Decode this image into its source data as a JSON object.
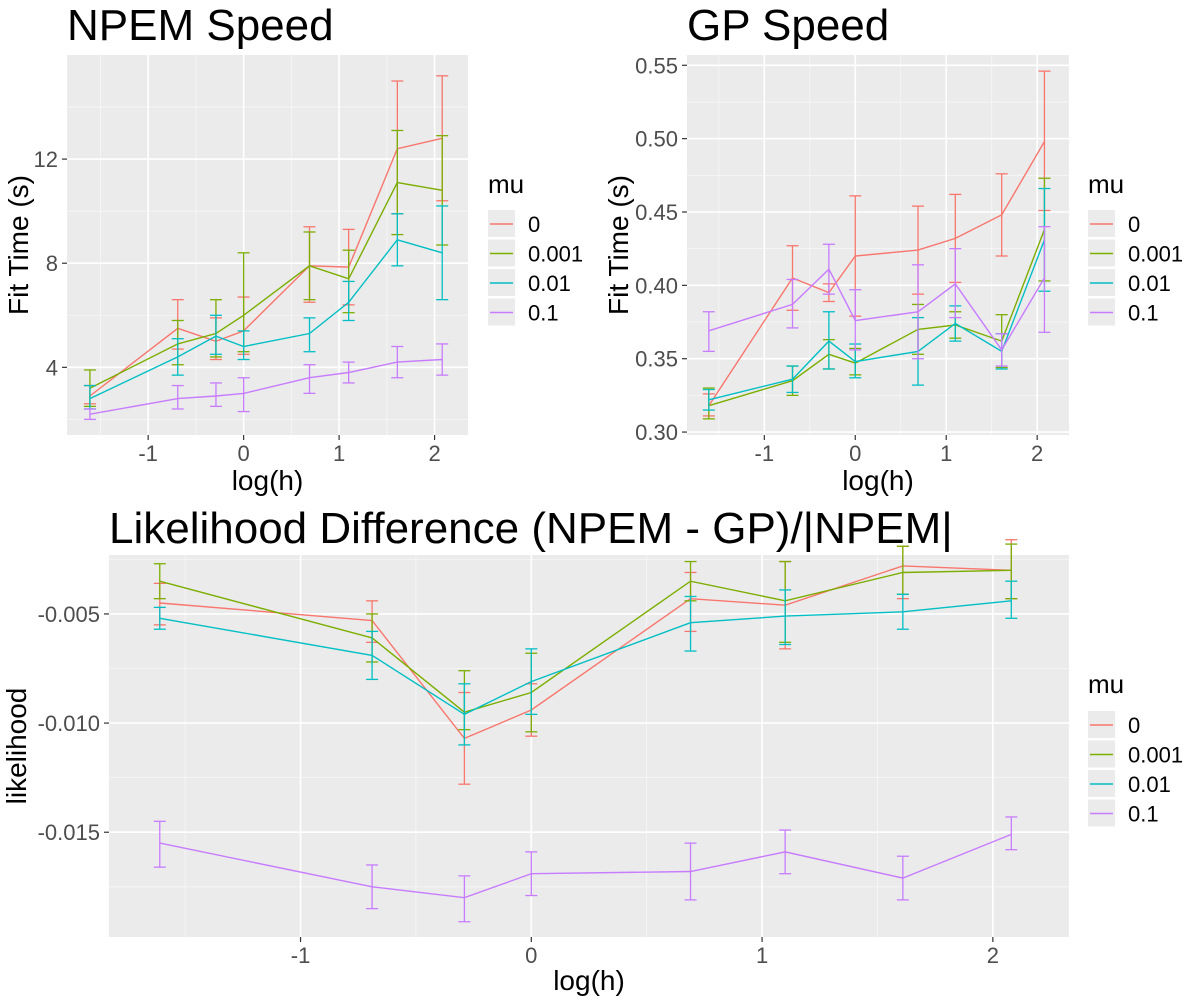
{
  "chart_data": [
    {
      "type": "line",
      "title": "NPEM Speed",
      "xlabel": "log(h)",
      "ylabel": "Fit Time (s)",
      "x": [
        -1.61,
        -0.69,
        -0.29,
        0.0,
        0.69,
        1.1,
        1.61,
        2.08
      ],
      "xlim": [
        -1.85,
        2.35
      ],
      "ylim": [
        1.4,
        16.0
      ],
      "xticks": [
        -1,
        0,
        1,
        2
      ],
      "yticks": [
        4,
        8,
        12
      ],
      "grid": true,
      "legend": {
        "title": "mu",
        "placement": "right"
      },
      "series": [
        {
          "name": "0",
          "color": "#F8766D",
          "values": [
            2.9,
            5.5,
            5.0,
            5.4,
            7.9,
            7.85,
            12.4,
            12.8
          ],
          "err_low": [
            2.6,
            4.7,
            4.3,
            4.5,
            6.5,
            6.4,
            9.9,
            10.4
          ],
          "err_high": [
            3.3,
            6.6,
            5.9,
            6.7,
            9.4,
            9.3,
            15.0,
            15.2
          ]
        },
        {
          "name": "0.001",
          "color": "#7CAE00",
          "values": [
            3.2,
            4.9,
            5.3,
            6.0,
            7.9,
            7.4,
            11.1,
            10.8
          ],
          "err_low": [
            2.5,
            4.1,
            4.4,
            4.6,
            6.6,
            6.1,
            9.1,
            8.7
          ],
          "err_high": [
            3.9,
            5.8,
            6.6,
            8.4,
            9.2,
            8.5,
            13.1,
            12.9
          ]
        },
        {
          "name": "0.01",
          "color": "#00BFC4",
          "values": [
            2.8,
            4.4,
            5.2,
            4.8,
            5.3,
            6.5,
            8.9,
            8.4
          ],
          "err_low": [
            2.4,
            3.7,
            4.5,
            4.3,
            4.6,
            5.8,
            7.9,
            6.6
          ],
          "err_high": [
            3.3,
            5.1,
            6.0,
            5.4,
            5.9,
            7.3,
            9.9,
            10.2
          ]
        },
        {
          "name": "0.1",
          "color": "#C77CFF",
          "values": [
            2.2,
            2.8,
            2.9,
            3.0,
            3.6,
            3.8,
            4.2,
            4.3
          ],
          "err_low": [
            2.0,
            2.4,
            2.5,
            2.3,
            3.0,
            3.4,
            3.6,
            3.7
          ],
          "err_high": [
            2.4,
            3.3,
            3.4,
            3.6,
            4.1,
            4.2,
            4.8,
            4.9
          ]
        }
      ]
    },
    {
      "type": "line",
      "title": "GP Speed",
      "xlabel": "log(h)",
      "ylabel": "Fit Time (s)",
      "x": [
        -1.61,
        -0.69,
        -0.29,
        0.0,
        0.69,
        1.1,
        1.61,
        2.08
      ],
      "xlim": [
        -1.85,
        2.35
      ],
      "ylim": [
        0.298,
        0.557
      ],
      "xticks": [
        -1,
        0,
        1,
        2
      ],
      "yticks": [
        0.3,
        0.35,
        0.4,
        0.45,
        0.5,
        0.55
      ],
      "grid": true,
      "legend": {
        "title": "mu",
        "placement": "right"
      },
      "series": [
        {
          "name": "0",
          "color": "#F8766D",
          "values": [
            0.318,
            0.405,
            0.395,
            0.42,
            0.424,
            0.432,
            0.448,
            0.498
          ],
          "err_low": [
            0.311,
            0.383,
            0.389,
            0.379,
            0.394,
            0.402,
            0.42,
            0.451
          ],
          "err_high": [
            0.326,
            0.427,
            0.401,
            0.461,
            0.454,
            0.462,
            0.476,
            0.546
          ]
        },
        {
          "name": "0.001",
          "color": "#7CAE00",
          "values": [
            0.318,
            0.335,
            0.353,
            0.347,
            0.37,
            0.373,
            0.362,
            0.438
          ],
          "err_low": [
            0.309,
            0.325,
            0.343,
            0.339,
            0.353,
            0.364,
            0.344,
            0.403
          ],
          "err_high": [
            0.33,
            0.345,
            0.363,
            0.357,
            0.387,
            0.382,
            0.38,
            0.473
          ]
        },
        {
          "name": "0.01",
          "color": "#00BFC4",
          "values": [
            0.322,
            0.336,
            0.362,
            0.348,
            0.355,
            0.374,
            0.355,
            0.431
          ],
          "err_low": [
            0.315,
            0.327,
            0.343,
            0.337,
            0.332,
            0.362,
            0.343,
            0.396
          ],
          "err_high": [
            0.329,
            0.345,
            0.382,
            0.36,
            0.378,
            0.386,
            0.367,
            0.466
          ]
        },
        {
          "name": "0.1",
          "color": "#C77CFF",
          "values": [
            0.369,
            0.387,
            0.411,
            0.376,
            0.382,
            0.401,
            0.356,
            0.405
          ],
          "err_low": [
            0.355,
            0.371,
            0.394,
            0.356,
            0.35,
            0.378,
            0.345,
            0.368
          ],
          "err_high": [
            0.382,
            0.404,
            0.428,
            0.397,
            0.414,
            0.425,
            0.367,
            0.44
          ]
        }
      ]
    },
    {
      "type": "line",
      "title": "Likelihood Difference (NPEM - GP)/|NPEM|",
      "xlabel": "log(h)",
      "ylabel": "likelihood",
      "x": [
        -1.61,
        -0.69,
        -0.29,
        0.0,
        0.69,
        1.1,
        1.61,
        2.08
      ],
      "xlim": [
        -1.83,
        2.33
      ],
      "ylim": [
        -0.0198,
        -0.0023
      ],
      "xticks": [
        -1,
        0,
        1,
        2
      ],
      "yticks": [
        -0.015,
        -0.01,
        -0.005
      ],
      "ytick_labels": [
        "-0.015",
        "-0.010",
        "-0.005"
      ],
      "grid": true,
      "legend": {
        "title": "mu",
        "placement": "right"
      },
      "series": [
        {
          "name": "0",
          "color": "#F8766D",
          "values": [
            -0.0045,
            -0.0053,
            -0.0107,
            -0.0094,
            -0.0043,
            -0.0046,
            -0.0028,
            -0.003
          ],
          "err_low": [
            -0.0055,
            -0.0063,
            -0.0128,
            -0.0106,
            -0.0058,
            -0.0066,
            -0.0043,
            -0.0043
          ],
          "err_high": [
            -0.0036,
            -0.0044,
            -0.0086,
            -0.0082,
            -0.0031,
            -0.0026,
            -0.0019,
            -0.0016
          ]
        },
        {
          "name": "0.001",
          "color": "#7CAE00",
          "values": [
            -0.0035,
            -0.0061,
            -0.0095,
            -0.0086,
            -0.0035,
            -0.0044,
            -0.0031,
            -0.003
          ],
          "err_low": [
            -0.0043,
            -0.0072,
            -0.0103,
            -0.0104,
            -0.0044,
            -0.0063,
            -0.0041,
            -0.0043
          ],
          "err_high": [
            -0.0027,
            -0.005,
            -0.0076,
            -0.0068,
            -0.0026,
            -0.0026,
            -0.0019,
            -0.0018
          ]
        },
        {
          "name": "0.01",
          "color": "#00BFC4",
          "values": [
            -0.0052,
            -0.0069,
            -0.0096,
            -0.0081,
            -0.0054,
            -0.0051,
            -0.0049,
            -0.0044
          ],
          "err_low": [
            -0.0057,
            -0.008,
            -0.011,
            -0.0096,
            -0.0067,
            -0.0064,
            -0.0057,
            -0.0052
          ],
          "err_high": [
            -0.0047,
            -0.0058,
            -0.0082,
            -0.0066,
            -0.0042,
            -0.0039,
            -0.0041,
            -0.0035
          ]
        },
        {
          "name": "0.1",
          "color": "#C77CFF",
          "values": [
            -0.0155,
            -0.0175,
            -0.018,
            -0.0169,
            -0.0168,
            -0.0159,
            -0.0171,
            -0.0151
          ],
          "err_low": [
            -0.0166,
            -0.0185,
            -0.0191,
            -0.0179,
            -0.0181,
            -0.0169,
            -0.0181,
            -0.0158
          ],
          "err_high": [
            -0.0145,
            -0.0165,
            -0.017,
            -0.0159,
            -0.0155,
            -0.0149,
            -0.0161,
            -0.0143
          ]
        }
      ]
    }
  ]
}
